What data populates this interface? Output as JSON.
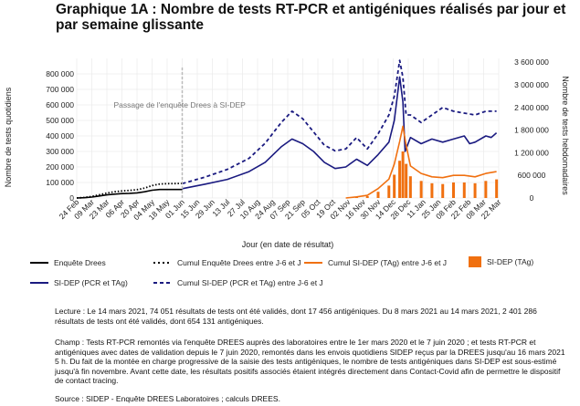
{
  "title": "Graphique 1A : Nombre de tests RT-PCR et antigéniques réalisés par jour et par semaine glissante",
  "chart_data": {
    "type": "line",
    "x_labels": [
      "24 Feb",
      "09 Mar",
      "23 Mar",
      "06 Apr",
      "20 Apr",
      "04 May",
      "18 May",
      "01 Jun",
      "15 Jun",
      "29 Jun",
      "13 Jul",
      "27 Jul",
      "10 Aug",
      "24 Aug",
      "07 Sep",
      "21 Sep",
      "05 Oct",
      "19 Oct",
      "02 Nov",
      "16 Nov",
      "30 Nov",
      "14 Dec",
      "28 Dec",
      "11 Jan",
      "25 Jan",
      "08 Feb",
      "22 Feb",
      "08 Mar",
      "22 Mar"
    ],
    "xlabel": "Jour (en date de résultat)",
    "ylabel_left": "Nombre de tests quotidiens",
    "ylabel_right": "Nombre de tests hebdomadaires",
    "y_left_ticks": [
      "0",
      "100 000",
      "200 000",
      "300 000",
      "400 000",
      "500 000",
      "600 000",
      "700 000",
      "800 000"
    ],
    "y_right_ticks": [
      "0",
      "600 000",
      "1 200 000",
      "1 800 000",
      "2 400 000",
      "3 000 000",
      "3 600 000"
    ],
    "ylim_left": [
      0,
      900000
    ],
    "ylim_right": [
      0,
      3700000
    ],
    "annotation": "Passage de l'enquête Drees à SI-DEP",
    "grid": true,
    "series": [
      {
        "name": "Enquête Drees",
        "axis": "left",
        "style": "solid",
        "color": "#000000",
        "x": [
          0,
          7,
          14,
          21,
          28,
          35,
          42,
          49,
          56,
          63,
          70,
          77,
          84,
          98
        ],
        "y": [
          0,
          2000,
          6000,
          13000,
          20000,
          25000,
          28000,
          30000,
          33000,
          40000,
          50000,
          55000,
          55000,
          55000
        ]
      },
      {
        "name": "SI-DEP (PCR et TAg)",
        "axis": "left",
        "style": "solid",
        "color": "#1a1a80",
        "x": [
          98,
          120,
          140,
          160,
          175,
          190,
          200,
          210,
          220,
          230,
          240,
          250,
          260,
          270,
          280,
          290,
          295,
          300,
          303,
          305,
          310,
          320,
          330,
          340,
          350,
          360,
          365,
          370,
          380,
          385,
          390
        ],
        "y": [
          60000,
          90000,
          120000,
          170000,
          230000,
          330000,
          380000,
          350000,
          300000,
          230000,
          190000,
          200000,
          250000,
          210000,
          280000,
          360000,
          500000,
          780000,
          620000,
          300000,
          390000,
          350000,
          380000,
          360000,
          380000,
          400000,
          350000,
          360000,
          400000,
          390000,
          420000
        ]
      },
      {
        "name": "Cumul Enquête Drees entre J-6 et J",
        "axis": "right",
        "style": "dotted",
        "color": "#000000",
        "x": [
          0,
          7,
          14,
          21,
          28,
          35,
          42,
          49,
          56,
          63,
          70,
          77,
          84,
          98
        ],
        "y": [
          0,
          12000,
          40000,
          85000,
          130000,
          165000,
          185000,
          200000,
          220000,
          260000,
          330000,
          370000,
          380000,
          385000
        ]
      },
      {
        "name": "Cumul SI-DEP (PCR et TAg) entre J-6 et J",
        "axis": "right",
        "style": "dashed",
        "color": "#1a1a80",
        "x": [
          98,
          120,
          140,
          160,
          175,
          190,
          200,
          210,
          220,
          230,
          240,
          250,
          260,
          270,
          280,
          290,
          295,
          300,
          303,
          306,
          310,
          320,
          330,
          340,
          350,
          360,
          370,
          380,
          390
        ],
        "y": [
          380000,
          560000,
          760000,
          1050000,
          1450000,
          2000000,
          2300000,
          2100000,
          1750000,
          1400000,
          1250000,
          1300000,
          1600000,
          1300000,
          1700000,
          2200000,
          2700000,
          3650000,
          3200000,
          2200000,
          2200000,
          2000000,
          2200000,
          2400000,
          2300000,
          2250000,
          2200000,
          2300000,
          2300000
        ]
      },
      {
        "name": "Cumul SI-DEP (TAg) entre J-6 et J",
        "axis": "right",
        "style": "solid",
        "color": "#f07010",
        "x": [
          250,
          260,
          270,
          280,
          290,
          295,
          300,
          303,
          306,
          310,
          320,
          330,
          340,
          350,
          360,
          370,
          380,
          390
        ],
        "y": [
          0,
          30000,
          70000,
          250000,
          500000,
          900000,
          1500000,
          1900000,
          1400000,
          850000,
          650000,
          560000,
          540000,
          600000,
          600000,
          560000,
          650000,
          700000
        ]
      },
      {
        "name": "SI-DEP (TAg)",
        "axis": "left",
        "style": "bar",
        "color": "#f07010",
        "x": [
          250,
          260,
          270,
          280,
          290,
          295,
          300,
          303,
          306,
          310,
          320,
          330,
          340,
          350,
          360,
          370,
          380,
          390
        ],
        "y": [
          0,
          5000,
          12000,
          40000,
          80000,
          150000,
          240000,
          300000,
          220000,
          140000,
          110000,
          95000,
          90000,
          100000,
          100000,
          95000,
          110000,
          120000
        ]
      }
    ]
  },
  "legend": {
    "l1": "Enquête Drees",
    "l2": "Cumul Enquête Drees entre J-6 et J",
    "l3": "Cumul SI-DEP (TAg) entre J-6 et J",
    "l4": "SI-DEP (TAg)",
    "l5": "SI-DEP (PCR et TAg)",
    "l6": "Cumul SI-DEP (PCR et TAg) entre J-6 et J"
  },
  "notes": {
    "lecture": "Lecture : Le 14 mars 2021, 74 051 résultats de tests ont été validés, dont 17 456 antigéniques. Du 8 mars 2021 au 14 mars 2021, 2 401 286 résultats de tests ont été validés, dont 654 131 antigéniques.",
    "champ": "Champ : Tests RT-PCR remontés via l'enquête DREES auprès des laboratoires entre le 1er mars 2020 et le 7 juin 2020 ; et tests RT-PCR et antigéniques avec dates de validation depuis le 7 juin 2020, remontés dans les envois quotidiens SIDEP reçus par la DREES jusqu'au 16 mars 2021 5 h. Du fait de la montée en charge progressive de la saisie des tests antigéniques, le nombre de tests antigéniques dans SI-DEP est sous-estimé jusqu'à fin novembre. Avant cette date, les résultats positifs associés étaient intégrés directement dans Contact-Covid afin de permettre le dispositif de contact tracing.",
    "source": "Source : SIDEP - Enquête DREES Laboratoires ; calculs DREES."
  }
}
